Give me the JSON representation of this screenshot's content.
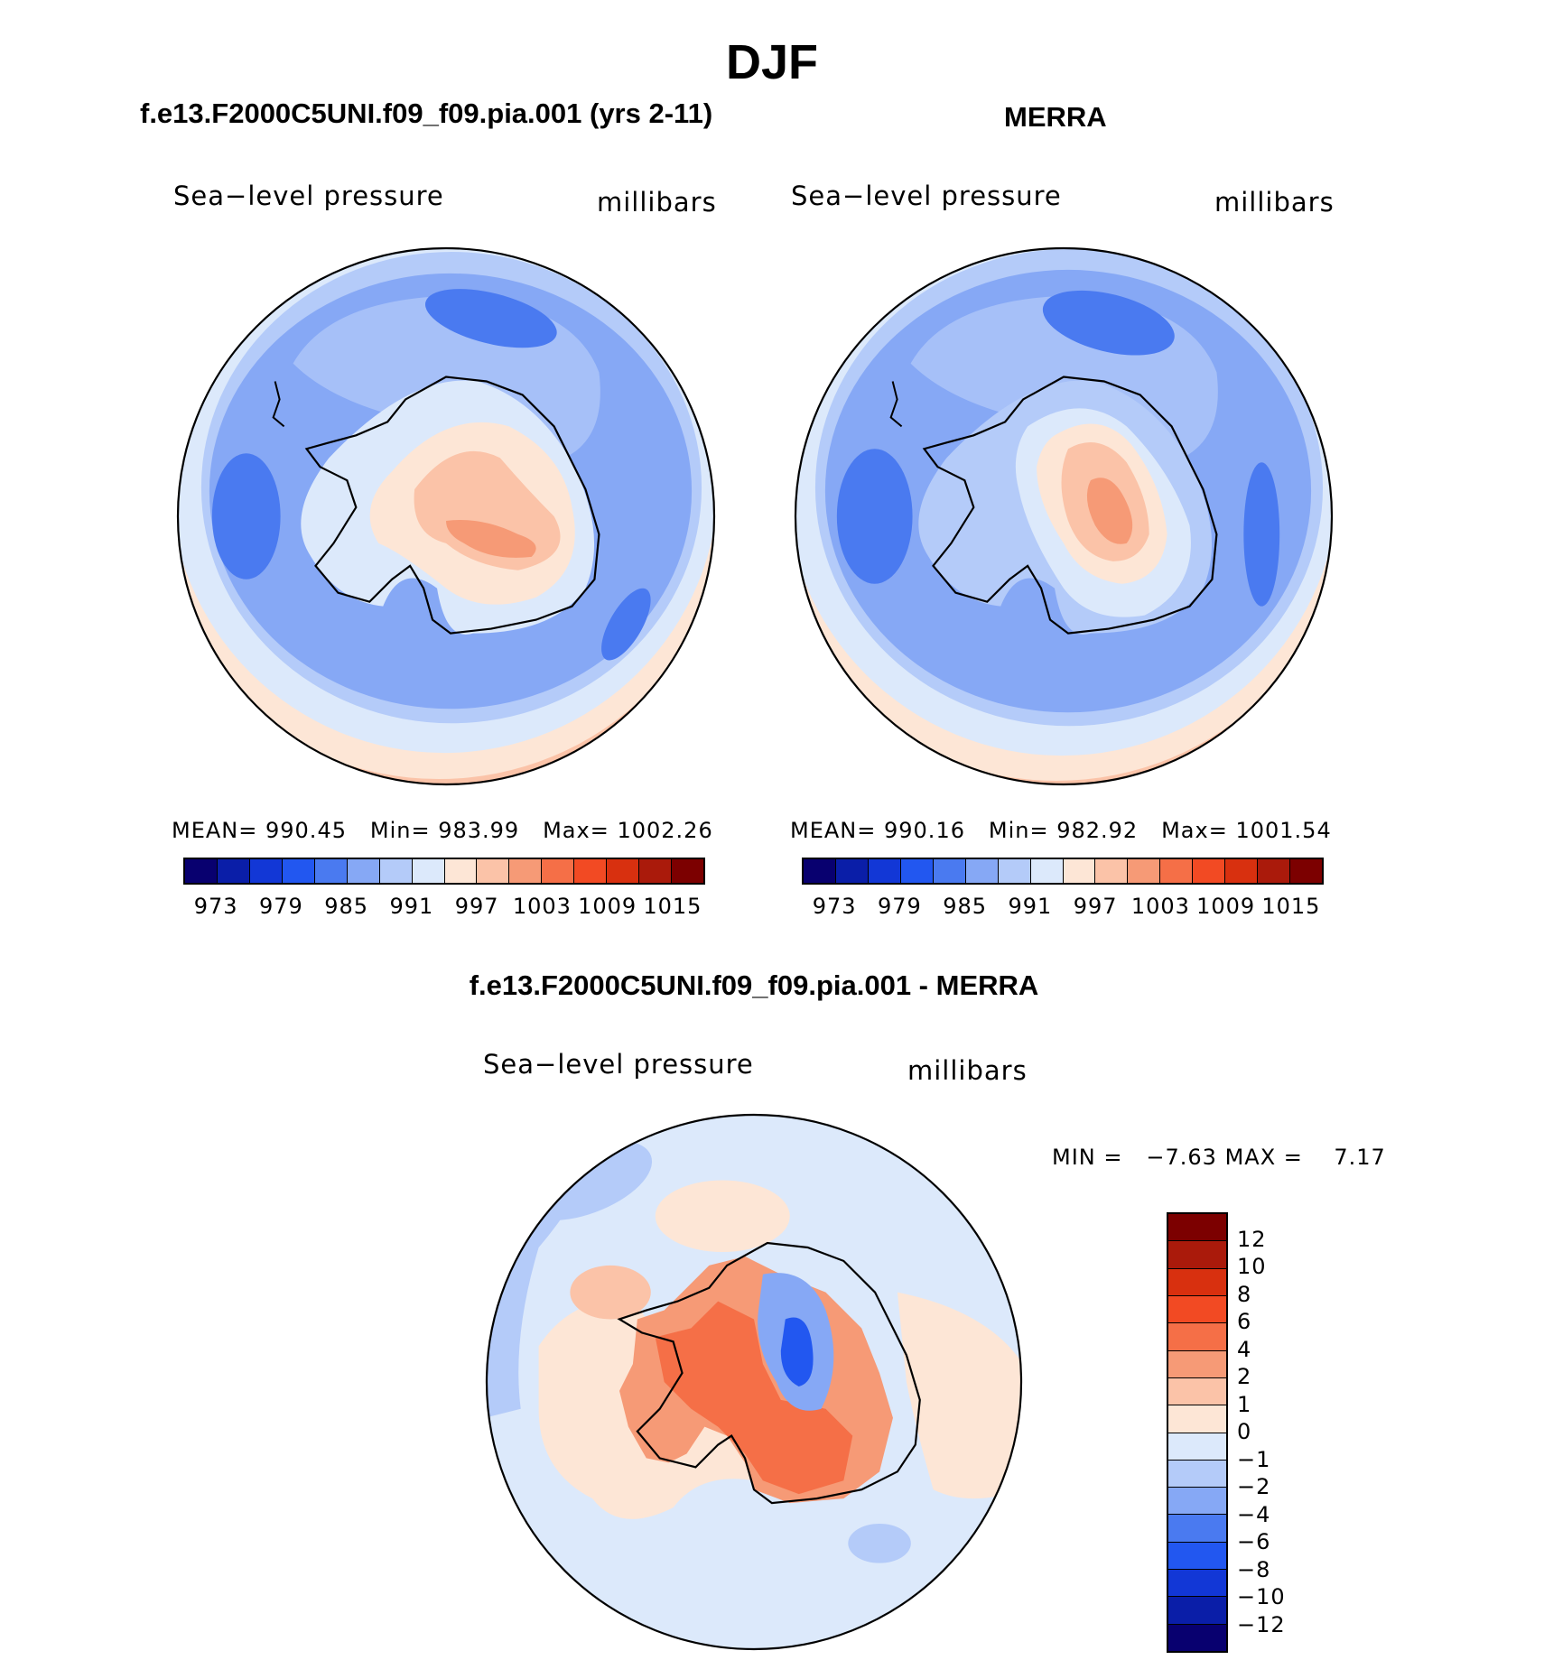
{
  "figure": {
    "title": "DJF",
    "diff_title": "f.e13.F2000C5UNI.f09_f09.pia.001 - MERRA"
  },
  "panels": [
    {
      "title": "f.e13.F2000C5UNI.f09_f09.pia.001 (yrs 2-11)",
      "variable": "Sea−level pressure",
      "units": "millibars",
      "stats": {
        "mean_label": "MEAN=",
        "mean": "990.45",
        "min_label": "Min=",
        "min": "983.99",
        "max_label": "Max=",
        "max": "1002.26"
      }
    },
    {
      "title": "MERRA",
      "variable": "Sea−level pressure",
      "units": "millibars",
      "stats": {
        "mean_label": "MEAN=",
        "mean": "990.16",
        "min_label": "Min=",
        "min": "982.92",
        "max_label": "Max=",
        "max": "1001.54"
      }
    }
  ],
  "diff_panel": {
    "variable": "Sea−level pressure",
    "units": "millibars",
    "min_label": "MIN =",
    "min": "−7.63",
    "max_label": "MAX =",
    "max": "7.17"
  },
  "chart_data": [
    {
      "type": "heatmap",
      "projection": "south polar stereographic",
      "title": "f.e13.F2000C5UNI.f09_f09.pia.001 (yrs 2-11)",
      "variable": "Sea-level pressure",
      "units": "millibars",
      "mean": 990.45,
      "min": 983.99,
      "max": 1002.26,
      "levels": [
        973,
        976,
        979,
        982,
        985,
        988,
        991,
        994,
        997,
        1000,
        1003,
        1006,
        1009,
        1012,
        1015
      ],
      "colorbar_labels": [
        "973",
        "979",
        "985",
        "991",
        "997",
        "1003",
        "1009",
        "1015"
      ]
    },
    {
      "type": "heatmap",
      "projection": "south polar stereographic",
      "title": "MERRA",
      "variable": "Sea-level pressure",
      "units": "millibars",
      "mean": 990.16,
      "min": 982.92,
      "max": 1001.54,
      "levels": [
        973,
        976,
        979,
        982,
        985,
        988,
        991,
        994,
        997,
        1000,
        1003,
        1006,
        1009,
        1012,
        1015
      ],
      "colorbar_labels": [
        "973",
        "979",
        "985",
        "991",
        "997",
        "1003",
        "1009",
        "1015"
      ]
    },
    {
      "type": "heatmap",
      "projection": "south polar stereographic",
      "title": "f.e13.F2000C5UNI.f09_f09.pia.001 - MERRA",
      "variable": "Sea-level pressure",
      "units": "millibars",
      "min": -7.63,
      "max": 7.17,
      "colorbar_labels": [
        "12",
        "10",
        "8",
        "6",
        "4",
        "2",
        "1",
        "0",
        "−1",
        "−2",
        "−4",
        "−6",
        "−8",
        "−10",
        "−12"
      ]
    }
  ],
  "colors": {
    "abs_scale": [
      "#08006f",
      "#0a1ea8",
      "#1237d6",
      "#2257f0",
      "#4a7af0",
      "#86a8f5",
      "#b4cbf9",
      "#dce9fb",
      "#fde6d6",
      "#fbc3a8",
      "#f69a76",
      "#f56f47",
      "#f24a23",
      "#d8300f",
      "#aa1a0b",
      "#7c0000"
    ],
    "diff_scale": [
      "#7c0000",
      "#aa1a0b",
      "#d8300f",
      "#f24a23",
      "#f56f47",
      "#f69a76",
      "#fbc3a8",
      "#fde6d6",
      "#dce9fb",
      "#b4cbf9",
      "#86a8f5",
      "#4a7af0",
      "#2257f0",
      "#1237d6",
      "#0a1ea8",
      "#08006f"
    ]
  }
}
